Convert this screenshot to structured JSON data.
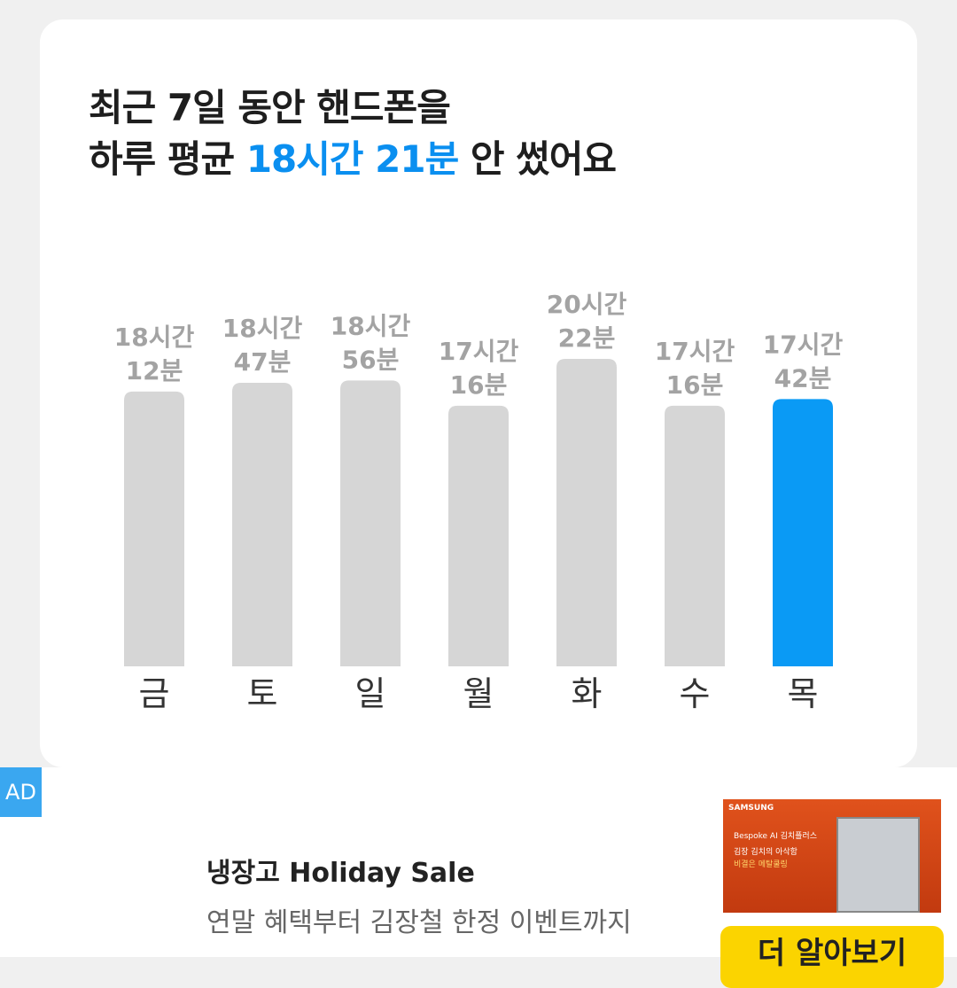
{
  "header": {
    "line1": "최근 7일 동안 핸드폰을",
    "line2_prefix": "하루 평균",
    "line2_highlight": "18시간 21분",
    "line2_suffix": "안 썼어요"
  },
  "chart_data": {
    "type": "bar",
    "categories": [
      "금",
      "토",
      "일",
      "월",
      "화",
      "수",
      "목"
    ],
    "values": [
      1092,
      1127,
      1136,
      1036,
      1222,
      1036,
      1062
    ],
    "value_labels": [
      [
        "18시간",
        "12분"
      ],
      [
        "18시간",
        "47분"
      ],
      [
        "18시간",
        "56분"
      ],
      [
        "17시간",
        "16분"
      ],
      [
        "20시간",
        "22분"
      ],
      [
        "17시간",
        "16분"
      ],
      [
        "17시간",
        "42분"
      ]
    ],
    "colors": [
      "#d6d6d6",
      "#d6d6d6",
      "#d6d6d6",
      "#d6d6d6",
      "#d6d6d6",
      "#d6d6d6",
      "#0a9af5"
    ]
  },
  "ad": {
    "badge": "AD",
    "title": "냉장고 Holiday Sale",
    "subtitle": "연말 혜택부터 김장철 한정 이벤트까지",
    "image": {
      "brand": "SAMSUNG",
      "product": "Bespoke AI 김치플러스",
      "line1": "김장 김치의 아삭함",
      "line2": "비결은 메탈쿨링"
    },
    "button": "더 알아보기"
  }
}
